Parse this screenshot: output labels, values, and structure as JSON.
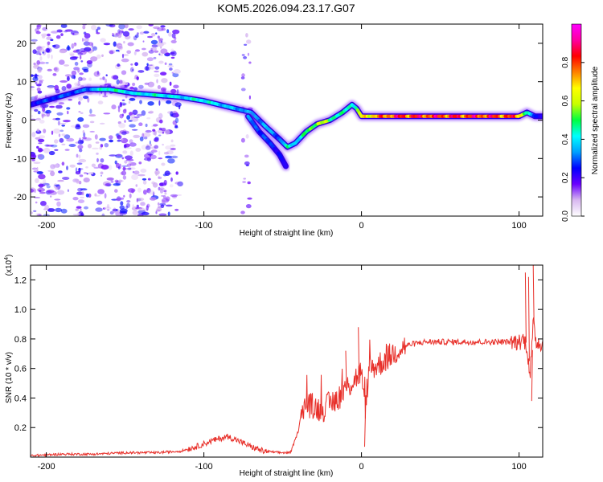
{
  "chart_data": [
    {
      "type": "heatmap",
      "title": "KOM5.2026.094.23.17.G07",
      "xlabel": "Height of straight line (km)",
      "ylabel": "Frequency (Hz)",
      "xlim": [
        -210,
        115
      ],
      "ylim": [
        -25,
        25
      ],
      "xticks": [
        -200,
        -100,
        0,
        100
      ],
      "xtick_labels": [
        "-200",
        "-100",
        "0",
        "100"
      ],
      "yticks": [
        -20,
        -10,
        0,
        10,
        20
      ],
      "ytick_labels": [
        "-20",
        "-10",
        "0",
        "10",
        "20"
      ],
      "colorbar": {
        "label": "Normalized spectral amplitude",
        "range": [
          0,
          1
        ],
        "ticks": [
          0,
          0.2,
          0.4,
          0.6,
          0.8
        ],
        "tick_labels": [
          "0.0",
          "0.2",
          "0.4",
          "0.6",
          "0.8"
        ],
        "colors": [
          "#ffffff",
          "#d8b8f0",
          "#6a00ff",
          "#0000ff",
          "#00a0ff",
          "#00ffff",
          "#00ff40",
          "#c8ff00",
          "#ffff00",
          "#ff8000",
          "#ff0000",
          "#ff00a0",
          "#ff00ff"
        ]
      },
      "ridges": [
        {
          "name": "main frequency ridge",
          "x": [
            -210,
            -175,
            -160,
            -145,
            -130,
            -115,
            -100,
            -90,
            -80,
            -70,
            -60,
            -52,
            -47,
            -42,
            -35,
            -28,
            -20,
            -12,
            -6,
            -3,
            0,
            20,
            50,
            80,
            100,
            105,
            110,
            115
          ],
          "freq": [
            4,
            8,
            8,
            7,
            6.5,
            6,
            5,
            4,
            3,
            2,
            -2,
            -5,
            -7,
            -6,
            -3,
            -1,
            0,
            2,
            4,
            3,
            1,
            1,
            1,
            1,
            1,
            2,
            1,
            1
          ],
          "amplitude": [
            0.3,
            0.35,
            0.55,
            0.45,
            0.5,
            0.45,
            0.5,
            0.45,
            0.4,
            0.4,
            0.4,
            0.35,
            0.5,
            0.45,
            0.55,
            0.7,
            0.6,
            0.5,
            0.55,
            0.55,
            0.75,
            0.95,
            0.95,
            0.95,
            0.9,
            0.5,
            0.3,
            0.3
          ]
        },
        {
          "name": "lower branch",
          "x": [
            -72,
            -65,
            -58,
            -52,
            -48
          ],
          "freq": [
            1,
            -3,
            -6,
            -9,
            -12
          ],
          "amplitude": [
            0.35,
            0.35,
            0.3,
            0.3,
            0.25
          ]
        }
      ],
      "noise_region": {
        "x_range": [
          -210,
          -115
        ],
        "freq_range": [
          -25,
          25
        ],
        "amplitude": 0.1
      }
    },
    {
      "type": "line",
      "xlabel": "Height of straight line (km)",
      "ylabel": "SNR (10 * v/v)",
      "y_multiplier": "(x10",
      "y_multiplier_exp": "4",
      "y_multiplier_close": ")",
      "xlim": [
        -210,
        115
      ],
      "ylim": [
        0,
        1.3
      ],
      "xticks": [
        -200,
        -100,
        0,
        100
      ],
      "xtick_labels": [
        "-200",
        "-100",
        "0",
        "100"
      ],
      "yticks": [
        0.2,
        0.4,
        0.6,
        0.8,
        1.0,
        1.2
      ],
      "ytick_labels": [
        "0.2",
        "0.4",
        "0.6",
        "0.8",
        "1.0",
        "1.2"
      ],
      "series": [
        {
          "name": "SNR",
          "color": "#e8302a",
          "x": [
            -210,
            -190,
            -170,
            -150,
            -130,
            -115,
            -105,
            -95,
            -85,
            -78,
            -70,
            -62,
            -52,
            -45,
            -40,
            -38,
            -35,
            -30,
            -25,
            -20,
            -15,
            -10,
            -5,
            0,
            2,
            5,
            10,
            15,
            20,
            25,
            30,
            40,
            50,
            60,
            70,
            80,
            90,
            95,
            100,
            103,
            105,
            107,
            109,
            111,
            115
          ],
          "y": [
            0.01,
            0.02,
            0.02,
            0.03,
            0.03,
            0.04,
            0.07,
            0.11,
            0.14,
            0.11,
            0.07,
            0.04,
            0.03,
            0.03,
            0.18,
            0.33,
            0.36,
            0.34,
            0.32,
            0.36,
            0.4,
            0.46,
            0.52,
            0.58,
            0.3,
            0.6,
            0.62,
            0.66,
            0.7,
            0.74,
            0.76,
            0.78,
            0.78,
            0.78,
            0.78,
            0.78,
            0.78,
            0.78,
            0.78,
            0.8,
            0.75,
            0.55,
            0.9,
            0.78,
            0.77
          ]
        }
      ]
    }
  ]
}
